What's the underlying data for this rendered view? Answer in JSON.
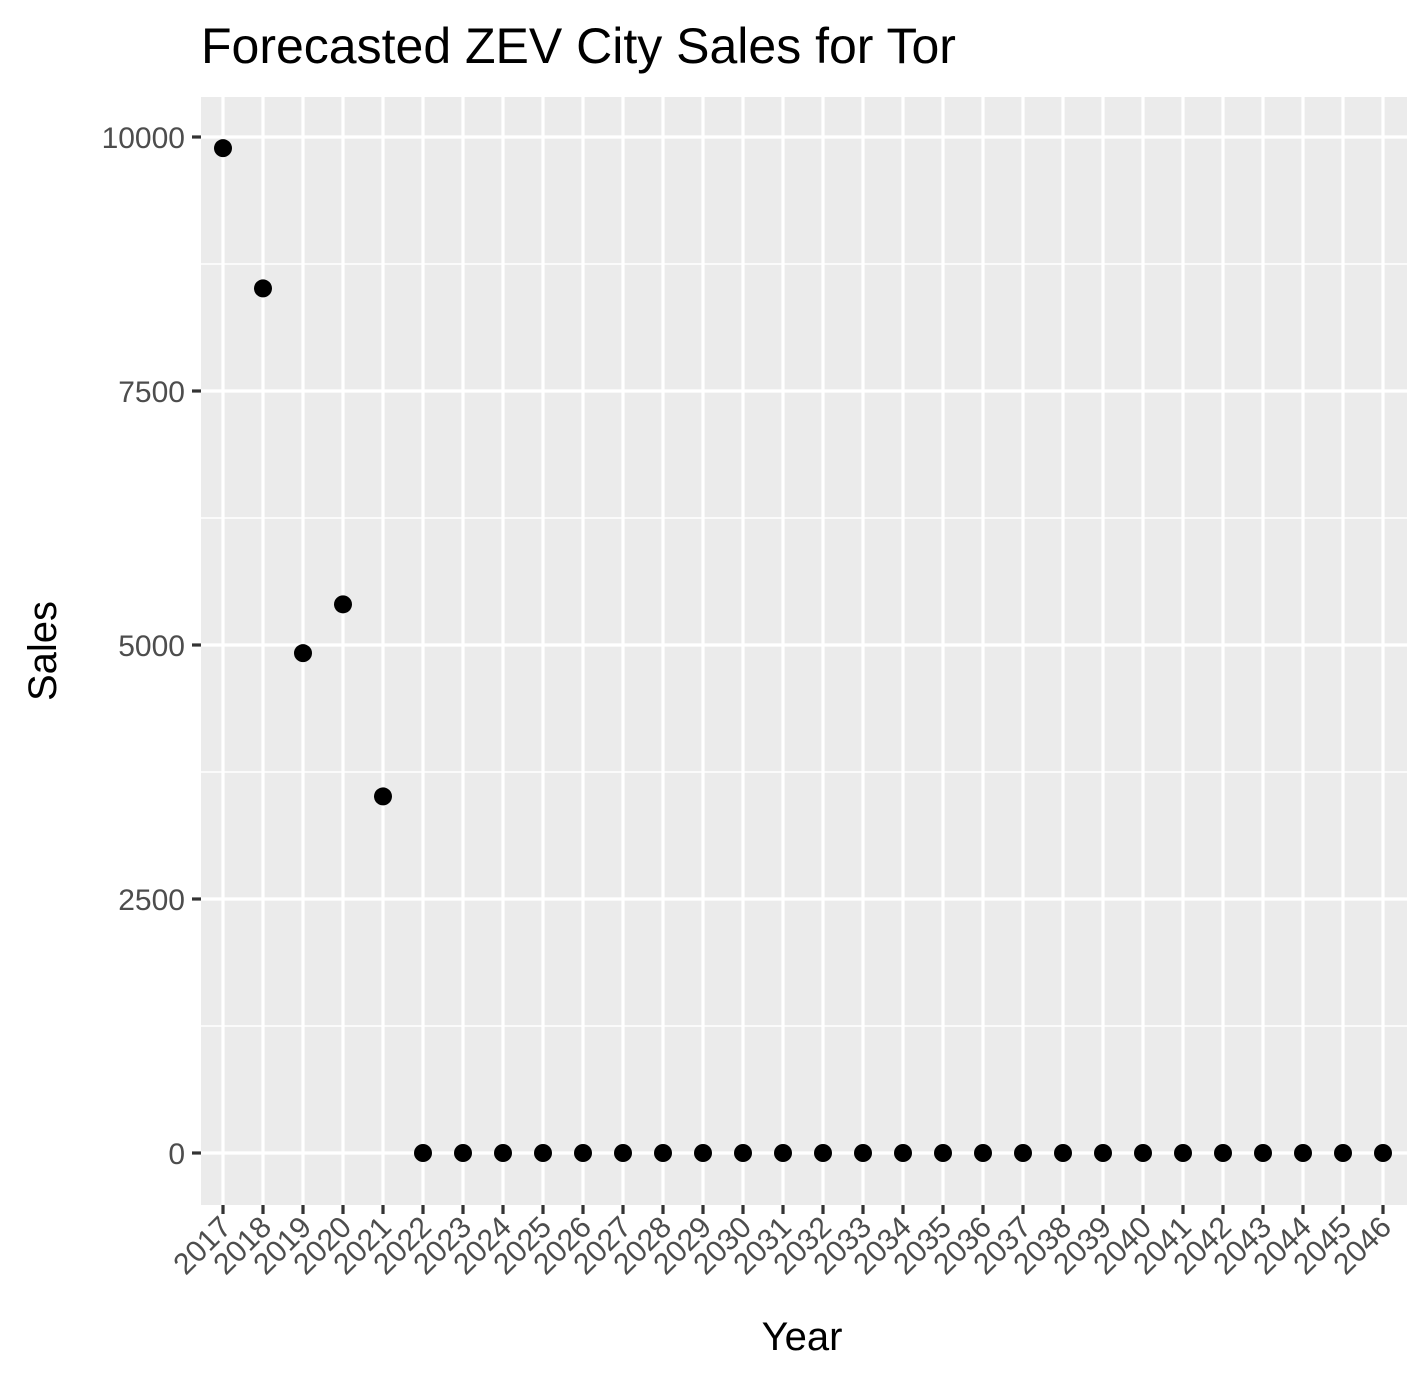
{
  "chart_data": {
    "type": "scatter",
    "title": "Forecasted ZEV City Sales for Tor",
    "xlabel": "Year",
    "ylabel": "Sales",
    "x": [
      "2017",
      "2018",
      "2019",
      "2020",
      "2021",
      "2022",
      "2023",
      "2024",
      "2025",
      "2026",
      "2027",
      "2028",
      "2029",
      "2030",
      "2031",
      "2032",
      "2033",
      "2034",
      "2035",
      "2036",
      "2037",
      "2038",
      "2039",
      "2040",
      "2041",
      "2042",
      "2043",
      "2044",
      "2045",
      "2046"
    ],
    "y": [
      9890,
      8510,
      4920,
      5400,
      3510,
      0,
      0,
      0,
      0,
      0,
      0,
      0,
      0,
      0,
      0,
      0,
      0,
      0,
      0,
      0,
      0,
      0,
      0,
      0,
      0,
      0,
      0,
      0,
      0,
      0
    ],
    "yticks": [
      "0",
      "2500",
      "5000",
      "7500",
      "10000"
    ],
    "ylim": [
      -500,
      10400
    ],
    "grid": true,
    "colors": {
      "panel": "#ebebeb",
      "grid": "#ffffff",
      "point": "#000000",
      "tick": "#333333"
    }
  }
}
